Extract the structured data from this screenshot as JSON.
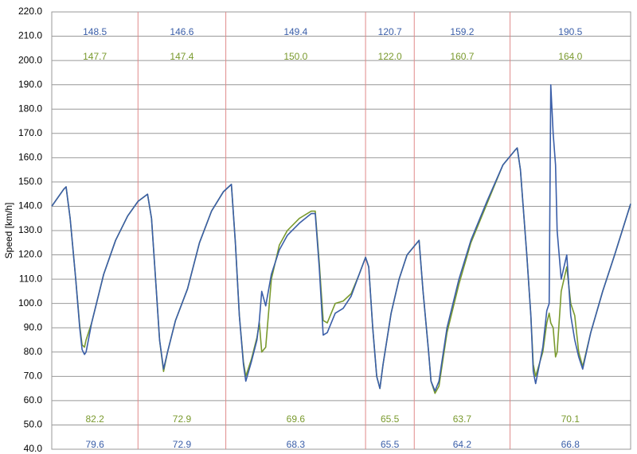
{
  "chart_data": {
    "type": "line",
    "y_label": "Speed [km/h]",
    "xlim": [
      0,
      725
    ],
    "ylim": [
      40,
      220
    ],
    "yticks": [
      {
        "value": 40,
        "label": "40.0"
      },
      {
        "value": 50,
        "label": "50.0"
      },
      {
        "value": 60,
        "label": "60.0"
      },
      {
        "value": 70,
        "label": "70.0"
      },
      {
        "value": 80,
        "label": "80.0"
      },
      {
        "value": 90,
        "label": "90.0"
      },
      {
        "value": 100,
        "label": "100.0"
      },
      {
        "value": 110,
        "label": "110.0"
      },
      {
        "value": 120,
        "label": "120.0"
      },
      {
        "value": 130,
        "label": "130.0"
      },
      {
        "value": 140,
        "label": "140.0"
      },
      {
        "value": 150,
        "label": "150.0"
      },
      {
        "value": 160,
        "label": "160.0"
      },
      {
        "value": 170,
        "label": "170.0"
      },
      {
        "value": 180,
        "label": "180.0"
      },
      {
        "value": 190,
        "label": "190.0"
      },
      {
        "value": 200,
        "label": "200.0"
      },
      {
        "value": 210,
        "label": "210.0"
      },
      {
        "value": 220,
        "label": "220.0"
      }
    ],
    "grid": true,
    "dividers": [
      108,
      218,
      393,
      454,
      574
    ],
    "divider_color": "#e08a8a",
    "x": [
      0,
      15,
      18,
      23,
      30,
      35,
      38,
      41,
      43,
      50,
      65,
      80,
      95,
      108,
      120,
      125,
      130,
      135,
      140,
      145,
      155,
      170,
      185,
      200,
      215,
      225,
      230,
      235,
      240,
      243,
      250,
      257,
      260,
      263,
      268,
      275,
      285,
      295,
      310,
      325,
      330,
      335,
      340,
      345,
      355,
      365,
      375,
      385,
      393,
      397,
      402,
      407,
      411,
      415,
      425,
      435,
      445,
      460,
      465,
      472,
      475,
      480,
      485,
      495,
      510,
      525,
      545,
      565,
      580,
      583,
      587,
      595,
      600,
      603,
      606,
      615,
      620,
      623,
      625,
      628,
      631,
      633,
      638,
      645,
      650,
      655,
      660,
      665,
      675,
      690,
      705,
      725
    ],
    "series": [
      {
        "color": "#3a5ea8",
        "values": [
          140,
          147,
          148,
          135,
          110,
          90,
          81,
          79,
          80,
          92,
          112,
          126,
          136,
          142,
          145,
          135,
          110,
          85,
          73,
          80,
          93,
          106,
          125,
          138,
          146,
          149,
          125,
          95,
          75,
          68,
          76,
          85,
          93,
          105,
          99,
          112,
          122,
          128,
          133,
          137,
          137,
          115,
          87,
          88,
          96,
          98,
          103,
          112,
          119,
          115,
          90,
          70,
          65,
          75,
          96,
          110,
          120,
          126,
          105,
          80,
          68,
          64,
          68,
          90,
          110,
          126,
          142,
          157,
          163,
          164,
          155,
          120,
          95,
          72,
          67,
          82,
          97,
          100,
          190,
          170,
          157,
          130,
          110,
          120,
          95,
          85,
          78,
          73,
          88,
          105,
          120,
          141
        ],
        "sector_max": [
          {
            "value": 148.5,
            "label": "148.5"
          },
          {
            "value": 146.6,
            "label": "146.6"
          },
          {
            "value": 149.4,
            "label": "149.4"
          },
          {
            "value": 120.7,
            "label": "120.7"
          },
          {
            "value": 159.2,
            "label": "159.2"
          },
          {
            "value": 190.5,
            "label": "190.5"
          }
        ],
        "sector_min": [
          {
            "value": 79.6,
            "label": "79.6"
          },
          {
            "value": 72.9,
            "label": "72.9"
          },
          {
            "value": 68.3,
            "label": "68.3"
          },
          {
            "value": 65.5,
            "label": "65.5"
          },
          {
            "value": 64.2,
            "label": "64.2"
          },
          {
            "value": 66.8,
            "label": "66.8"
          }
        ]
      },
      {
        "color": "#7a9a2e",
        "values": [
          140,
          147,
          148,
          135,
          110,
          91,
          83,
          82,
          85,
          92,
          112,
          126,
          136,
          142,
          145,
          135,
          110,
          85,
          72,
          80,
          93,
          106,
          125,
          138,
          146,
          149,
          125,
          95,
          76,
          70,
          77,
          86,
          92,
          80,
          82,
          110,
          124,
          130,
          135,
          138,
          138,
          117,
          93,
          92,
          100,
          101,
          104,
          112,
          119,
          115,
          90,
          70,
          65,
          75,
          96,
          110,
          120,
          126,
          105,
          80,
          68,
          63,
          66,
          88,
          108,
          125,
          141,
          157,
          163,
          164,
          155,
          120,
          95,
          75,
          70,
          80,
          92,
          96,
          92,
          90,
          78,
          80,
          105,
          115,
          100,
          95,
          80,
          74,
          88,
          105,
          120,
          141
        ],
        "sector_max": [
          {
            "value": 147.7,
            "label": "147.7"
          },
          {
            "value": 147.4,
            "label": "147.4"
          },
          {
            "value": 150,
            "label": "150.0"
          },
          {
            "value": 122,
            "label": "122.0"
          },
          {
            "value": 160.7,
            "label": "160.7"
          },
          {
            "value": 164,
            "label": "164.0"
          }
        ],
        "sector_min": [
          {
            "value": 82.2,
            "label": "82.2"
          },
          {
            "value": 72.9,
            "label": "72.9"
          },
          {
            "value": 69.6,
            "label": "69.6"
          },
          {
            "value": 65.5,
            "label": "65.5"
          },
          {
            "value": 63.7,
            "label": "63.7"
          },
          {
            "value": 70.1,
            "label": "70.1"
          }
        ]
      }
    ]
  }
}
